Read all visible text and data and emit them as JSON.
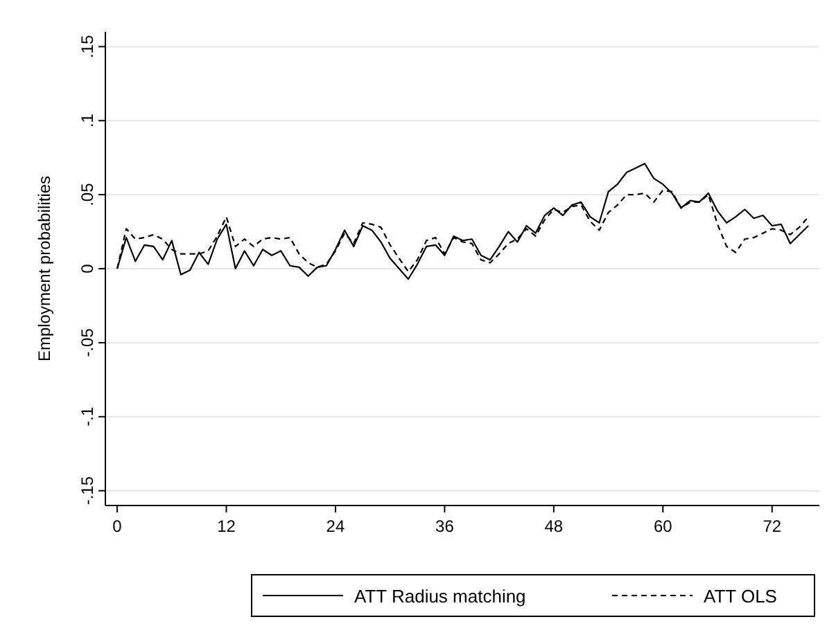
{
  "chart_data": {
    "type": "line",
    "ylabel": "Employment probabilities",
    "x": [
      0,
      1,
      2,
      3,
      4,
      5,
      6,
      7,
      8,
      9,
      10,
      11,
      12,
      13,
      14,
      15,
      16,
      17,
      18,
      19,
      20,
      21,
      22,
      23,
      24,
      25,
      26,
      27,
      28,
      29,
      30,
      31,
      32,
      33,
      34,
      35,
      36,
      37,
      38,
      39,
      40,
      41,
      42,
      43,
      44,
      45,
      46,
      47,
      48,
      49,
      50,
      51,
      52,
      53,
      54,
      55,
      56,
      57,
      58,
      59,
      60,
      61,
      62,
      63,
      64,
      65,
      66,
      67,
      68,
      69,
      70,
      71,
      72,
      73,
      74,
      75,
      76
    ],
    "series": [
      {
        "name": "ATT Radius matching",
        "color": "#000000",
        "line_style": "solid",
        "values": [
          0,
          0.021,
          0.005,
          0.016,
          0.015,
          0.006,
          0.019,
          -0.004,
          -0.001,
          0.011,
          0.003,
          0.02,
          0.03,
          0,
          0.012,
          0.002,
          0.013,
          0.009,
          0.012,
          0.002,
          0.001,
          -0.005,
          0.001,
          0.002,
          0.013,
          0.026,
          0.015,
          0.029,
          0.026,
          0.018,
          0.007,
          0,
          -0.007,
          0.003,
          0.015,
          0.016,
          0.009,
          0.022,
          0.019,
          0.02,
          0.009,
          0.006,
          0.015,
          0.025,
          0.018,
          0.029,
          0.024,
          0.036,
          0.041,
          0.036,
          0.043,
          0.045,
          0.035,
          0.031,
          0.052,
          0.057,
          0.065,
          0.068,
          0.071,
          0.061,
          0.057,
          0.051,
          0.041,
          0.046,
          0.045,
          0.051,
          0.039,
          0.031,
          0.035,
          0.04,
          0.034,
          0.036,
          0.029,
          0.03,
          0.017,
          0.023,
          0.029
        ]
      },
      {
        "name": "ATT OLS",
        "color": "#000000",
        "line_style": "dashed",
        "values": [
          0,
          0.027,
          0.02,
          0.021,
          0.023,
          0.02,
          0.013,
          0.01,
          0.01,
          0.01,
          0.012,
          0.022,
          0.035,
          0.015,
          0.02,
          0.015,
          0.02,
          0.021,
          0.02,
          0.021,
          0.01,
          0.004,
          0.001,
          0.003,
          0.012,
          0.024,
          0.017,
          0.031,
          0.03,
          0.028,
          0.016,
          0.007,
          -0.002,
          0.006,
          0.019,
          0.021,
          0.01,
          0.021,
          0.018,
          0.017,
          0.006,
          0.004,
          0.01,
          0.017,
          0.02,
          0.027,
          0.022,
          0.033,
          0.04,
          0.038,
          0.042,
          0.043,
          0.032,
          0.026,
          0.038,
          0.043,
          0.05,
          0.05,
          0.051,
          0.045,
          0.053,
          0.052,
          0.041,
          0.045,
          0.045,
          0.05,
          0.03,
          0.015,
          0.011,
          0.02,
          0.021,
          0.024,
          0.027,
          0.026,
          0.023,
          0.028,
          0.035
        ]
      }
    ],
    "xlim": [
      -1.3,
      77.2
    ],
    "xticks": [
      0,
      12,
      24,
      36,
      48,
      60,
      72
    ],
    "ylim": [
      -0.16,
      0.16
    ],
    "yticks": [
      {
        "value": -0.15,
        "label": "-.15"
      },
      {
        "value": -0.1,
        "label": "-.1"
      },
      {
        "value": -0.05,
        "label": "-.05"
      },
      0,
      {
        "value": 0.05,
        "label": ".05"
      },
      {
        "value": 0.1,
        "label": ".1"
      },
      {
        "value": 0.15,
        "label": ".15"
      }
    ],
    "grid": "y",
    "legend": "bottom",
    "marker": "none"
  }
}
